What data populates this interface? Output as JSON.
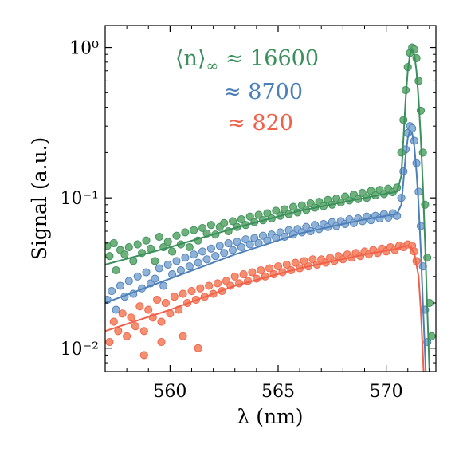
{
  "chart_data": {
    "type": "scatter",
    "xlabel": "λ (nm)",
    "ylabel": "Signal (a.u.)",
    "xlim": [
      557.0,
      572.3
    ],
    "ylim": [
      0.007,
      1.4
    ],
    "yscale": "log",
    "xticks": [
      560,
      565,
      570
    ],
    "xtick_labels": [
      "560",
      "565",
      "570"
    ],
    "yticks": [
      0.01,
      0.1,
      1
    ],
    "ytick_labels": [
      "10⁻²",
      "10⁻¹",
      "10⁰"
    ],
    "grid": false,
    "legend": "none",
    "annotations": [
      {
        "prefix": "⟨n⟩",
        "subscript": "∞",
        "text": " ≈ 16600",
        "series": "⟨n⟩∞ ≈ 16600"
      },
      {
        "prefix": "",
        "subscript": "",
        "text": "≈ 8700",
        "series": "≈ 8700"
      },
      {
        "prefix": "",
        "subscript": "",
        "text": "≈ 820",
        "series": "≈ 820"
      }
    ],
    "series": [
      {
        "name": "⟨n⟩∞ ≈ 16600",
        "color": "#3a8f5c",
        "marker_color": "#6fb17a",
        "points": [
          [
            557.1,
            0.048
          ],
          [
            557.2,
            0.041
          ],
          [
            557.4,
            0.05
          ],
          [
            557.5,
            0.033
          ],
          [
            557.7,
            0.045
          ],
          [
            557.9,
            0.042
          ],
          [
            558.1,
            0.047
          ],
          [
            558.3,
            0.038
          ],
          [
            558.5,
            0.049
          ],
          [
            558.7,
            0.043
          ],
          [
            558.9,
            0.052
          ],
          [
            559.1,
            0.046
          ],
          [
            559.3,
            0.038
          ],
          [
            559.5,
            0.055
          ],
          [
            559.7,
            0.047
          ],
          [
            559.9,
            0.051
          ],
          [
            560.1,
            0.044
          ],
          [
            560.3,
            0.056
          ],
          [
            560.5,
            0.049
          ],
          [
            560.7,
            0.059
          ],
          [
            560.9,
            0.047
          ],
          [
            561.1,
            0.061
          ],
          [
            561.3,
            0.052
          ],
          [
            561.5,
            0.063
          ],
          [
            561.7,
            0.058
          ],
          [
            561.9,
            0.066
          ],
          [
            562.1,
            0.057
          ],
          [
            562.3,
            0.064
          ],
          [
            562.5,
            0.068
          ],
          [
            562.7,
            0.06
          ],
          [
            562.9,
            0.07
          ],
          [
            563.1,
            0.064
          ],
          [
            563.3,
            0.072
          ],
          [
            563.5,
            0.066
          ],
          [
            563.7,
            0.075
          ],
          [
            563.9,
            0.069
          ],
          [
            564.1,
            0.077
          ],
          [
            564.3,
            0.071
          ],
          [
            564.5,
            0.079
          ],
          [
            564.7,
            0.073
          ],
          [
            564.9,
            0.082
          ],
          [
            565.1,
            0.076
          ],
          [
            565.3,
            0.084
          ],
          [
            565.5,
            0.078
          ],
          [
            565.7,
            0.087
          ],
          [
            565.9,
            0.08
          ],
          [
            566.1,
            0.089
          ],
          [
            566.3,
            0.083
          ],
          [
            566.5,
            0.092
          ],
          [
            566.7,
            0.086
          ],
          [
            566.9,
            0.094
          ],
          [
            567.1,
            0.088
          ],
          [
            567.3,
            0.097
          ],
          [
            567.5,
            0.09
          ],
          [
            567.7,
            0.099
          ],
          [
            567.9,
            0.093
          ],
          [
            568.1,
            0.102
          ],
          [
            568.3,
            0.096
          ],
          [
            568.5,
            0.105
          ],
          [
            568.7,
            0.098
          ],
          [
            568.9,
            0.108
          ],
          [
            569.1,
            0.1
          ],
          [
            569.3,
            0.111
          ],
          [
            569.5,
            0.104
          ],
          [
            569.7,
            0.113
          ],
          [
            569.9,
            0.106
          ],
          [
            570.1,
            0.115
          ],
          [
            570.3,
            0.109
          ],
          [
            570.5,
            0.117
          ],
          [
            570.7,
            0.2
          ],
          [
            570.8,
            0.33
          ],
          [
            570.9,
            0.52
          ],
          [
            571.0,
            0.74
          ],
          [
            571.1,
            0.92
          ],
          [
            571.2,
            1.0
          ],
          [
            571.3,
            0.97
          ],
          [
            571.4,
            0.85
          ],
          [
            571.5,
            0.6
          ],
          [
            571.6,
            0.38
          ],
          [
            571.7,
            0.2
          ],
          [
            571.8,
            0.09
          ],
          [
            571.9,
            0.04
          ],
          [
            572.0,
            0.02
          ],
          [
            572.1,
            0.012
          ]
        ],
        "fit": [
          [
            557.0,
            0.036
          ],
          [
            560.0,
            0.047
          ],
          [
            563.0,
            0.063
          ],
          [
            566.0,
            0.082
          ],
          [
            569.0,
            0.1
          ],
          [
            570.5,
            0.11
          ],
          [
            570.7,
            0.14
          ],
          [
            570.8,
            0.25
          ],
          [
            570.9,
            0.45
          ],
          [
            571.0,
            0.7
          ],
          [
            571.1,
            0.9
          ],
          [
            571.2,
            0.97
          ],
          [
            571.3,
            0.9
          ],
          [
            571.4,
            0.7
          ],
          [
            571.5,
            0.45
          ],
          [
            571.6,
            0.25
          ],
          [
            571.7,
            0.12
          ],
          [
            571.8,
            0.05
          ],
          [
            571.9,
            0.018
          ],
          [
            572.0,
            0.007
          ]
        ]
      },
      {
        "name": "≈ 8700",
        "color": "#4d7fb8",
        "marker_color": "#8fb2d8",
        "points": [
          [
            557.1,
            0.021
          ],
          [
            557.3,
            0.024
          ],
          [
            557.5,
            0.018
          ],
          [
            557.7,
            0.026
          ],
          [
            557.9,
            0.022
          ],
          [
            558.1,
            0.028
          ],
          [
            558.3,
            0.023
          ],
          [
            558.5,
            0.03
          ],
          [
            558.7,
            0.025
          ],
          [
            558.9,
            0.032
          ],
          [
            559.1,
            0.027
          ],
          [
            559.3,
            0.029
          ],
          [
            559.5,
            0.034
          ],
          [
            559.7,
            0.026
          ],
          [
            559.9,
            0.036
          ],
          [
            560.1,
            0.031
          ],
          [
            560.3,
            0.038
          ],
          [
            560.5,
            0.033
          ],
          [
            560.7,
            0.04
          ],
          [
            560.9,
            0.035
          ],
          [
            561.1,
            0.042
          ],
          [
            561.3,
            0.037
          ],
          [
            561.5,
            0.044
          ],
          [
            561.7,
            0.039
          ],
          [
            561.9,
            0.046
          ],
          [
            562.1,
            0.041
          ],
          [
            562.3,
            0.048
          ],
          [
            562.5,
            0.043
          ],
          [
            562.7,
            0.05
          ],
          [
            562.9,
            0.045
          ],
          [
            563.1,
            0.051
          ],
          [
            563.3,
            0.047
          ],
          [
            563.5,
            0.053
          ],
          [
            563.7,
            0.049
          ],
          [
            563.9,
            0.054
          ],
          [
            564.1,
            0.05
          ],
          [
            564.3,
            0.056
          ],
          [
            564.5,
            0.052
          ],
          [
            564.7,
            0.057
          ],
          [
            564.9,
            0.054
          ],
          [
            565.1,
            0.059
          ],
          [
            565.3,
            0.055
          ],
          [
            565.5,
            0.061
          ],
          [
            565.7,
            0.057
          ],
          [
            565.9,
            0.062
          ],
          [
            566.1,
            0.059
          ],
          [
            566.3,
            0.064
          ],
          [
            566.5,
            0.06
          ],
          [
            566.7,
            0.066
          ],
          [
            566.9,
            0.062
          ],
          [
            567.1,
            0.067
          ],
          [
            567.3,
            0.064
          ],
          [
            567.5,
            0.069
          ],
          [
            567.7,
            0.065
          ],
          [
            567.9,
            0.07
          ],
          [
            568.1,
            0.067
          ],
          [
            568.3,
            0.072
          ],
          [
            568.5,
            0.068
          ],
          [
            568.7,
            0.073
          ],
          [
            568.9,
            0.07
          ],
          [
            569.1,
            0.075
          ],
          [
            569.3,
            0.071
          ],
          [
            569.5,
            0.076
          ],
          [
            569.7,
            0.073
          ],
          [
            569.9,
            0.078
          ],
          [
            570.1,
            0.074
          ],
          [
            570.3,
            0.079
          ],
          [
            570.5,
            0.076
          ],
          [
            570.7,
            0.1
          ],
          [
            570.8,
            0.15
          ],
          [
            570.9,
            0.21
          ],
          [
            571.0,
            0.27
          ],
          [
            571.1,
            0.3
          ],
          [
            571.2,
            0.29
          ],
          [
            571.3,
            0.24
          ],
          [
            571.4,
            0.17
          ],
          [
            571.5,
            0.11
          ],
          [
            571.6,
            0.065
          ],
          [
            571.7,
            0.035
          ],
          [
            571.8,
            0.018
          ],
          [
            571.9,
            0.011
          ]
        ],
        "fit": [
          [
            557.0,
            0.02
          ],
          [
            560.0,
            0.029
          ],
          [
            563.0,
            0.042
          ],
          [
            566.0,
            0.058
          ],
          [
            569.0,
            0.072
          ],
          [
            570.5,
            0.078
          ],
          [
            570.7,
            0.09
          ],
          [
            570.8,
            0.13
          ],
          [
            570.9,
            0.19
          ],
          [
            571.0,
            0.25
          ],
          [
            571.1,
            0.28
          ],
          [
            571.2,
            0.27
          ],
          [
            571.3,
            0.22
          ],
          [
            571.4,
            0.15
          ],
          [
            571.5,
            0.09
          ],
          [
            571.6,
            0.045
          ],
          [
            571.7,
            0.02
          ],
          [
            571.8,
            0.009
          ],
          [
            571.85,
            0.006
          ]
        ]
      },
      {
        "name": "≈ 820",
        "color": "#f0604a",
        "marker_color": "#f68f70",
        "points": [
          [
            557.2,
            0.011
          ],
          [
            557.4,
            0.015
          ],
          [
            557.6,
            0.013
          ],
          [
            557.8,
            0.017
          ],
          [
            558.0,
            0.012
          ],
          [
            558.2,
            0.016
          ],
          [
            558.4,
            0.014
          ],
          [
            558.6,
            0.019
          ],
          [
            558.8,
            0.013
          ],
          [
            559.0,
            0.018
          ],
          [
            559.2,
            0.016
          ],
          [
            559.4,
            0.021
          ],
          [
            559.6,
            0.015
          ],
          [
            559.8,
            0.02
          ],
          [
            560.0,
            0.017
          ],
          [
            560.2,
            0.022
          ],
          [
            560.4,
            0.018
          ],
          [
            560.6,
            0.023
          ],
          [
            560.8,
            0.02
          ],
          [
            561.0,
            0.024
          ],
          [
            561.2,
            0.021
          ],
          [
            561.4,
            0.025
          ],
          [
            561.6,
            0.022
          ],
          [
            561.8,
            0.026
          ],
          [
            562.0,
            0.023
          ],
          [
            562.2,
            0.027
          ],
          [
            562.4,
            0.024
          ],
          [
            562.6,
            0.028
          ],
          [
            562.8,
            0.026
          ],
          [
            563.0,
            0.03
          ],
          [
            563.2,
            0.027
          ],
          [
            563.4,
            0.031
          ],
          [
            563.6,
            0.028
          ],
          [
            563.8,
            0.032
          ],
          [
            564.0,
            0.029
          ],
          [
            564.2,
            0.033
          ],
          [
            564.4,
            0.03
          ],
          [
            564.6,
            0.034
          ],
          [
            564.8,
            0.031
          ],
          [
            565.0,
            0.035
          ],
          [
            565.2,
            0.032
          ],
          [
            565.4,
            0.036
          ],
          [
            565.6,
            0.033
          ],
          [
            565.8,
            0.037
          ],
          [
            566.0,
            0.034
          ],
          [
            566.2,
            0.038
          ],
          [
            566.4,
            0.035
          ],
          [
            566.6,
            0.039
          ],
          [
            566.8,
            0.036
          ],
          [
            567.0,
            0.039
          ],
          [
            567.2,
            0.037
          ],
          [
            567.4,
            0.04
          ],
          [
            567.6,
            0.038
          ],
          [
            567.8,
            0.041
          ],
          [
            568.0,
            0.039
          ],
          [
            568.2,
            0.042
          ],
          [
            568.4,
            0.04
          ],
          [
            568.6,
            0.043
          ],
          [
            568.8,
            0.041
          ],
          [
            569.0,
            0.044
          ],
          [
            569.2,
            0.042
          ],
          [
            569.4,
            0.045
          ],
          [
            569.6,
            0.043
          ],
          [
            569.8,
            0.046
          ],
          [
            570.0,
            0.044
          ],
          [
            570.2,
            0.047
          ],
          [
            570.4,
            0.045
          ],
          [
            570.6,
            0.048
          ],
          [
            570.8,
            0.047
          ],
          [
            571.0,
            0.049
          ],
          [
            571.2,
            0.048
          ],
          [
            571.3,
            0.044
          ],
          [
            571.4,
            0.038
          ],
          [
            558.8,
            0.009
          ],
          [
            559.6,
            0.011
          ],
          [
            560.6,
            0.012
          ],
          [
            561.3,
            0.01
          ]
        ],
        "fit": [
          [
            557.0,
            0.013
          ],
          [
            560.0,
            0.018
          ],
          [
            563.0,
            0.026
          ],
          [
            566.0,
            0.034
          ],
          [
            569.0,
            0.042
          ],
          [
            570.5,
            0.046
          ],
          [
            570.9,
            0.048
          ],
          [
            571.1,
            0.048
          ],
          [
            571.3,
            0.043
          ],
          [
            571.5,
            0.03
          ],
          [
            571.6,
            0.018
          ],
          [
            571.7,
            0.009
          ],
          [
            571.75,
            0.006
          ]
        ]
      }
    ]
  }
}
